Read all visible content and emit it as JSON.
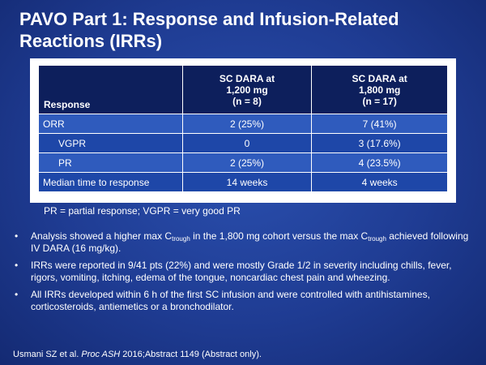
{
  "title": "PAVO Part 1: Response and Infusion-Related Reactions (IRRs)",
  "table": {
    "headers": {
      "response": "Response",
      "col1": [
        "SC DARA at",
        "1,200 mg",
        "(n = 8)"
      ],
      "col2": [
        "SC DARA at",
        "1,800 mg",
        "(n = 17)"
      ]
    },
    "rows": [
      {
        "label": "ORR",
        "c1": "2 (25%)",
        "c2": "7 (41%)"
      },
      {
        "label": "VGPR",
        "c1": "0",
        "c2": "3 (17.6%)"
      },
      {
        "label": "PR",
        "c1": "2 (25%)",
        "c2": "4 (23.5%)"
      },
      {
        "label": "Median time to response",
        "c1": "14 weeks",
        "c2": "4 weeks"
      }
    ]
  },
  "footnote": "PR = partial response; VGPR = very good PR",
  "bullets": {
    "b1_a": "Analysis showed a higher max C",
    "b1_sub1": "trough",
    "b1_b": " in the 1,800 mg cohort versus the max C",
    "b1_sub2": "trough",
    "b1_c": " achieved following IV DARA (16 mg/kg).",
    "b2": "IRRs were reported in 9/41 pts (22%) and were mostly Grade 1/2 in severity including chills, fever, rigors, vomiting, itching, edema of the tongue, noncardiac chest pain and wheezing.",
    "b3": "All IRRs developed within 6 h of the first SC infusion and were controlled with antihistamines, corticosteroids, antiemetics or a bronchodilator.",
    "marker": "•"
  },
  "citation": {
    "authors": "Usmani SZ et al. ",
    "journal": "Proc ASH",
    "rest": " 2016;Abstract 1149 (Abstract only)."
  }
}
